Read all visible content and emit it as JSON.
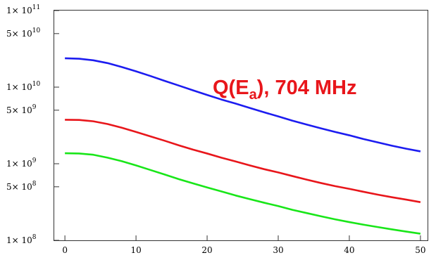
{
  "chart_data": {
    "type": "line",
    "title": "",
    "xlabel": "",
    "ylabel": "",
    "xlim": [
      -1.5,
      51
    ],
    "ylim": [
      100000000.0,
      100000000000.0
    ],
    "yscale": "log",
    "grid": false,
    "x_ticks": [
      0,
      10,
      20,
      30,
      40,
      50
    ],
    "x_tick_labels": [
      "0",
      "10",
      "20",
      "30",
      "40",
      "50"
    ],
    "y_ticks": [
      {
        "value": 100000000.0,
        "mantissa": "1",
        "exp": "8"
      },
      {
        "value": 500000000.0,
        "mantissa": "5",
        "exp": "8"
      },
      {
        "value": 1000000000.0,
        "mantissa": "1",
        "exp": "9"
      },
      {
        "value": 5000000000.0,
        "mantissa": "5",
        "exp": "9"
      },
      {
        "value": 10000000000.0,
        "mantissa": "1",
        "exp": "10"
      },
      {
        "value": 50000000000.0,
        "mantissa": "5",
        "exp": "10"
      },
      {
        "value": 100000000000.0,
        "mantissa": "1",
        "exp": "11"
      }
    ],
    "y_tick_mult": "× 10",
    "annotation": {
      "pre": "Q(E",
      "sub": "a",
      "post": "), 704 MHz",
      "color": "#e8161b"
    },
    "series": [
      {
        "color": "#1c1cf0",
        "x": [
          0,
          2,
          4,
          6,
          8,
          10,
          12,
          14,
          16,
          18,
          20,
          22,
          24,
          26,
          28,
          30,
          32,
          34,
          36,
          38,
          40,
          42,
          44,
          46,
          48,
          50
        ],
        "y": [
          23800000000.0,
          23500000000.0,
          22400000000.0,
          20600000000.0,
          18300000000.0,
          16100000000.0,
          14000000000.0,
          12100000000.0,
          10500000000.0,
          9100000000.0,
          7900000000.0,
          6900000000.0,
          6100000000.0,
          5350000000.0,
          4700000000.0,
          4150000000.0,
          3650000000.0,
          3250000000.0,
          2900000000.0,
          2600000000.0,
          2350000000.0,
          2100000000.0,
          1900000000.0,
          1720000000.0,
          1570000000.0,
          1450000000.0
        ]
      },
      {
        "color": "#e8161b",
        "x": [
          0,
          2,
          4,
          6,
          8,
          10,
          12,
          14,
          16,
          18,
          20,
          22,
          24,
          26,
          28,
          30,
          32,
          34,
          36,
          38,
          40,
          42,
          44,
          46,
          48,
          50
        ],
        "y": [
          3750000000.0,
          3730000000.0,
          3580000000.0,
          3300000000.0,
          2950000000.0,
          2600000000.0,
          2280000000.0,
          2000000000.0,
          1740000000.0,
          1530000000.0,
          1360000000.0,
          1200000000.0,
          1070000000.0,
          950000000.0,
          850000000.0,
          770000000.0,
          690000000.0,
          620000000.0,
          560000000.0,
          510000000.0,
          470000000.0,
          430000000.0,
          395000000.0,
          365000000.0,
          340000000.0,
          315000000.0
        ]
      },
      {
        "color": "#19e619",
        "x": [
          0,
          2,
          4,
          6,
          8,
          10,
          12,
          14,
          16,
          18,
          20,
          22,
          24,
          26,
          28,
          30,
          32,
          34,
          36,
          38,
          40,
          42,
          44,
          46,
          48,
          50
        ],
        "y": [
          1370000000.0,
          1360000000.0,
          1310000000.0,
          1200000000.0,
          1080000000.0,
          950000000.0,
          830000000.0,
          725000000.0,
          630000000.0,
          555000000.0,
          490000000.0,
          435000000.0,
          385000000.0,
          345000000.0,
          310000000.0,
          280000000.0,
          250000000.0,
          227000000.0,
          206000000.0,
          188000000.0,
          173000000.0,
          160000000.0,
          149000000.0,
          139000000.0,
          130000000.0,
          122000000.0
        ]
      }
    ]
  }
}
